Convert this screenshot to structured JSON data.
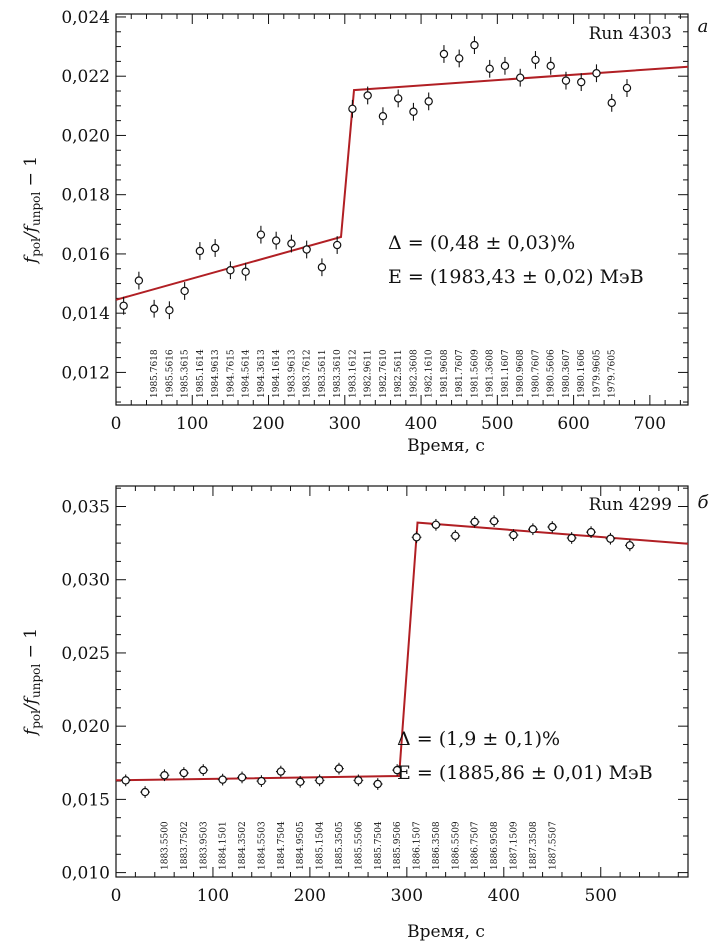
{
  "chart_data": [
    {
      "type": "scatter",
      "panel_label": "а",
      "run_label": "Run 4303",
      "xlabel": "Время, с",
      "ylabel_main": "f",
      "ylabel_sub1": "pol",
      "ylabel_mid": "/f",
      "ylabel_sub2": "unpol",
      "ylabel_tail": " − 1",
      "xlim": [
        0,
        750
      ],
      "ylim": [
        0.0109,
        0.0241
      ],
      "xticks": [
        0,
        100,
        200,
        300,
        400,
        500,
        600,
        700
      ],
      "xtick_labels": [
        "0",
        "100",
        "200",
        "300",
        "400",
        "500",
        "600",
        "700"
      ],
      "yticks": [
        0.012,
        0.014,
        0.016,
        0.018,
        0.02,
        0.022,
        0.024
      ],
      "ytick_labels": [
        "0,012",
        "0,014",
        "0,016",
        "0,018",
        "0,020",
        "0,022",
        "0,024"
      ],
      "annotation_delta": "Δ = (0,48 ± 0,03)%",
      "annotation_energy": "E = (1983,43 ± 0,02) МэВ",
      "points": [
        {
          "x": 10,
          "y": 0.01425,
          "yerr": 0.0003,
          "xerr": 5
        },
        {
          "x": 30,
          "y": 0.0151,
          "yerr": 0.0003,
          "xerr": 5
        },
        {
          "x": 50,
          "y": 0.01415,
          "yerr": 0.0003,
          "xerr": 5
        },
        {
          "x": 70,
          "y": 0.0141,
          "yerr": 0.0003,
          "xerr": 5
        },
        {
          "x": 90,
          "y": 0.01475,
          "yerr": 0.0003,
          "xerr": 5
        },
        {
          "x": 110,
          "y": 0.0161,
          "yerr": 0.0003,
          "xerr": 5
        },
        {
          "x": 130,
          "y": 0.0162,
          "yerr": 0.0003,
          "xerr": 5
        },
        {
          "x": 150,
          "y": 0.01545,
          "yerr": 0.0003,
          "xerr": 5
        },
        {
          "x": 170,
          "y": 0.0154,
          "yerr": 0.0003,
          "xerr": 5
        },
        {
          "x": 190,
          "y": 0.01665,
          "yerr": 0.0003,
          "xerr": 5
        },
        {
          "x": 210,
          "y": 0.01645,
          "yerr": 0.0003,
          "xerr": 5
        },
        {
          "x": 230,
          "y": 0.01635,
          "yerr": 0.0003,
          "xerr": 5
        },
        {
          "x": 250,
          "y": 0.01615,
          "yerr": 0.0003,
          "xerr": 5
        },
        {
          "x": 270,
          "y": 0.01555,
          "yerr": 0.0003,
          "xerr": 5
        },
        {
          "x": 290,
          "y": 0.0163,
          "yerr": 0.0003,
          "xerr": 5
        },
        {
          "x": 310,
          "y": 0.0209,
          "yerr": 0.0003,
          "xerr": 5
        },
        {
          "x": 330,
          "y": 0.02135,
          "yerr": 0.0003,
          "xerr": 5
        },
        {
          "x": 350,
          "y": 0.02065,
          "yerr": 0.0003,
          "xerr": 5
        },
        {
          "x": 370,
          "y": 0.02125,
          "yerr": 0.0003,
          "xerr": 5
        },
        {
          "x": 390,
          "y": 0.0208,
          "yerr": 0.0003,
          "xerr": 5
        },
        {
          "x": 410,
          "y": 0.02115,
          "yerr": 0.0003,
          "xerr": 5
        },
        {
          "x": 430,
          "y": 0.02275,
          "yerr": 0.0003,
          "xerr": 5
        },
        {
          "x": 450,
          "y": 0.0226,
          "yerr": 0.0003,
          "xerr": 5
        },
        {
          "x": 470,
          "y": 0.02305,
          "yerr": 0.0003,
          "xerr": 5
        },
        {
          "x": 490,
          "y": 0.02225,
          "yerr": 0.0003,
          "xerr": 5
        },
        {
          "x": 510,
          "y": 0.02235,
          "yerr": 0.0003,
          "xerr": 5
        },
        {
          "x": 530,
          "y": 0.02195,
          "yerr": 0.0003,
          "xerr": 5
        },
        {
          "x": 550,
          "y": 0.02255,
          "yerr": 0.0003,
          "xerr": 5
        },
        {
          "x": 570,
          "y": 0.02235,
          "yerr": 0.0003,
          "xerr": 5
        },
        {
          "x": 590,
          "y": 0.02185,
          "yerr": 0.0003,
          "xerr": 5
        },
        {
          "x": 610,
          "y": 0.0218,
          "yerr": 0.0003,
          "xerr": 5
        },
        {
          "x": 630,
          "y": 0.0221,
          "yerr": 0.0003,
          "xerr": 5
        },
        {
          "x": 650,
          "y": 0.0211,
          "yerr": 0.0003,
          "xerr": 5
        },
        {
          "x": 670,
          "y": 0.0216,
          "yerr": 0.0003,
          "xerr": 5
        }
      ],
      "fit": [
        [
          0,
          0.01445
        ],
        [
          295,
          0.01657
        ],
        [
          312,
          0.02153
        ],
        [
          750,
          0.02232
        ]
      ],
      "point_notes": [
        {
          "x": 50,
          "label": "1985.7618"
        },
        {
          "x": 70,
          "label": "1985.5616"
        },
        {
          "x": 90,
          "label": "1985.3615"
        },
        {
          "x": 110,
          "label": "1985.1614"
        },
        {
          "x": 130,
          "label": "1984.9613"
        },
        {
          "x": 150,
          "label": "1984.7615"
        },
        {
          "x": 170,
          "label": "1984.5614"
        },
        {
          "x": 190,
          "label": "1984.3613"
        },
        {
          "x": 210,
          "label": "1984.1614"
        },
        {
          "x": 230,
          "label": "1983.9613"
        },
        {
          "x": 250,
          "label": "1983.7612"
        },
        {
          "x": 270,
          "label": "1983.5611"
        },
        {
          "x": 290,
          "label": "1983.3610"
        },
        {
          "x": 310,
          "label": "1983.1612"
        },
        {
          "x": 330,
          "label": "1982.9611"
        },
        {
          "x": 350,
          "label": "1982.7610"
        },
        {
          "x": 370,
          "label": "1982.5611"
        },
        {
          "x": 390,
          "label": "1982.3608"
        },
        {
          "x": 410,
          "label": "1982.1610"
        },
        {
          "x": 430,
          "label": "1981.9608"
        },
        {
          "x": 450,
          "label": "1981.7607"
        },
        {
          "x": 470,
          "label": "1981.5609"
        },
        {
          "x": 490,
          "label": "1981.3608"
        },
        {
          "x": 510,
          "label": "1981.1607"
        },
        {
          "x": 530,
          "label": "1980.9608"
        },
        {
          "x": 550,
          "label": "1980.7607"
        },
        {
          "x": 570,
          "label": "1980.5606"
        },
        {
          "x": 590,
          "label": "1980.3607"
        },
        {
          "x": 610,
          "label": "1980.1606"
        },
        {
          "x": 630,
          "label": "1979.9605"
        },
        {
          "x": 650,
          "label": "1979.7605"
        }
      ]
    },
    {
      "type": "scatter",
      "panel_label": "б",
      "run_label": "Run 4299",
      "xlabel": "Время, с",
      "ylabel_main": "f",
      "ylabel_sub1": "pol",
      "ylabel_mid": "/f",
      "ylabel_sub2": "unpol",
      "ylabel_tail": " − 1",
      "xlim": [
        0,
        590
      ],
      "ylim": [
        0.0097,
        0.0364
      ],
      "xticks": [
        0,
        100,
        200,
        300,
        400,
        500
      ],
      "xtick_labels": [
        "0",
        "100",
        "200",
        "300",
        "400",
        "500"
      ],
      "yticks": [
        0.01,
        0.015,
        0.02,
        0.025,
        0.03,
        0.035
      ],
      "ytick_labels": [
        "0,010",
        "0,015",
        "0,020",
        "0,025",
        "0,030",
        "0,035"
      ],
      "annotation_delta": "Δ = (1,9 ± 0,1)%",
      "annotation_energy": "E = (1885,86 ± 0,01) МэВ",
      "points": [
        {
          "x": 10,
          "y": 0.0163,
          "yerr": 0.0004,
          "xerr": 5
        },
        {
          "x": 30,
          "y": 0.0155,
          "yerr": 0.0004,
          "xerr": 5
        },
        {
          "x": 50,
          "y": 0.01665,
          "yerr": 0.0004,
          "xerr": 5
        },
        {
          "x": 70,
          "y": 0.0168,
          "yerr": 0.0004,
          "xerr": 5
        },
        {
          "x": 90,
          "y": 0.017,
          "yerr": 0.0004,
          "xerr": 5
        },
        {
          "x": 110,
          "y": 0.01635,
          "yerr": 0.0004,
          "xerr": 5
        },
        {
          "x": 130,
          "y": 0.0165,
          "yerr": 0.0004,
          "xerr": 5
        },
        {
          "x": 150,
          "y": 0.01625,
          "yerr": 0.0004,
          "xerr": 5
        },
        {
          "x": 170,
          "y": 0.0169,
          "yerr": 0.0004,
          "xerr": 5
        },
        {
          "x": 190,
          "y": 0.0162,
          "yerr": 0.0004,
          "xerr": 5
        },
        {
          "x": 210,
          "y": 0.0163,
          "yerr": 0.0004,
          "xerr": 5
        },
        {
          "x": 230,
          "y": 0.0171,
          "yerr": 0.0004,
          "xerr": 5
        },
        {
          "x": 250,
          "y": 0.0163,
          "yerr": 0.0004,
          "xerr": 5
        },
        {
          "x": 270,
          "y": 0.01605,
          "yerr": 0.0004,
          "xerr": 5
        },
        {
          "x": 290,
          "y": 0.017,
          "yerr": 0.0004,
          "xerr": 5
        },
        {
          "x": 310,
          "y": 0.0329,
          "yerr": 0.0004,
          "xerr": 5
        },
        {
          "x": 330,
          "y": 0.03375,
          "yerr": 0.0004,
          "xerr": 5
        },
        {
          "x": 350,
          "y": 0.033,
          "yerr": 0.0004,
          "xerr": 5
        },
        {
          "x": 370,
          "y": 0.03395,
          "yerr": 0.0004,
          "xerr": 5
        },
        {
          "x": 390,
          "y": 0.034,
          "yerr": 0.0004,
          "xerr": 5
        },
        {
          "x": 410,
          "y": 0.03305,
          "yerr": 0.0004,
          "xerr": 5
        },
        {
          "x": 430,
          "y": 0.03345,
          "yerr": 0.0004,
          "xerr": 5
        },
        {
          "x": 450,
          "y": 0.0336,
          "yerr": 0.0004,
          "xerr": 5
        },
        {
          "x": 470,
          "y": 0.03285,
          "yerr": 0.0004,
          "xerr": 5
        },
        {
          "x": 490,
          "y": 0.03325,
          "yerr": 0.0004,
          "xerr": 5
        },
        {
          "x": 510,
          "y": 0.0328,
          "yerr": 0.0004,
          "xerr": 5
        },
        {
          "x": 530,
          "y": 0.03235,
          "yerr": 0.0004,
          "xerr": 5
        }
      ],
      "fit": [
        [
          0,
          0.0163
        ],
        [
          292,
          0.0166
        ],
        [
          311,
          0.0339
        ],
        [
          590,
          0.03245
        ]
      ],
      "point_notes": [
        {
          "x": 50,
          "label": "1883.5500"
        },
        {
          "x": 70,
          "label": "1883.7502"
        },
        {
          "x": 90,
          "label": "1883.9503"
        },
        {
          "x": 110,
          "label": "1884.1501"
        },
        {
          "x": 130,
          "label": "1884.3502"
        },
        {
          "x": 150,
          "label": "1884.5503"
        },
        {
          "x": 170,
          "label": "1884.7504"
        },
        {
          "x": 190,
          "label": "1884.9505"
        },
        {
          "x": 210,
          "label": "1885.1504"
        },
        {
          "x": 230,
          "label": "1885.3505"
        },
        {
          "x": 250,
          "label": "1885.5506"
        },
        {
          "x": 270,
          "label": "1885.7504"
        },
        {
          "x": 290,
          "label": "1885.9506"
        },
        {
          "x": 310,
          "label": "1886.1507"
        },
        {
          "x": 330,
          "label": "1886.3508"
        },
        {
          "x": 350,
          "label": "1886.5509"
        },
        {
          "x": 370,
          "label": "1886.7507"
        },
        {
          "x": 390,
          "label": "1886.9508"
        },
        {
          "x": 410,
          "label": "1887.1509"
        },
        {
          "x": 430,
          "label": "1887.3508"
        },
        {
          "x": 450,
          "label": "1887.5507"
        }
      ]
    }
  ]
}
